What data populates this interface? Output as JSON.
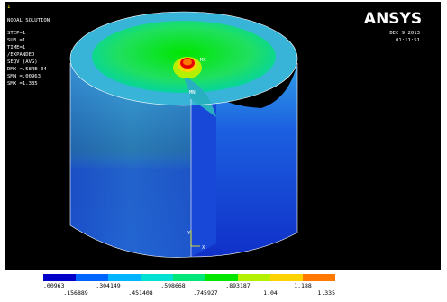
{
  "window": {
    "number": "1",
    "title": "NODAL SOLUTION",
    "info_lines": [
      "STEP=1",
      "SUB =1",
      "TIME=1",
      "/EXPANDED",
      "SEQV     (AVG)",
      "DMX =.584E-04",
      "SMN =.00963",
      "SMX =1.335"
    ],
    "logo": "ANSYS",
    "date": "DEC  9 2013",
    "time": "01:11:51",
    "model_labels": {
      "max": "MX",
      "min": "MN",
      "y_axis": "Y",
      "x_axis": "X"
    }
  },
  "legend": {
    "colors": [
      "#0000c8",
      "#0064ff",
      "#00b4ff",
      "#00e1d2",
      "#00e678",
      "#00e600",
      "#b4f000",
      "#ffd200",
      "#ff7800",
      "#e60000"
    ],
    "labels": [
      ".00963",
      ".156889",
      ".304149",
      ".451408",
      ".598668",
      ".745927",
      ".893187",
      "1.04",
      "1.188",
      "1.335"
    ]
  }
}
